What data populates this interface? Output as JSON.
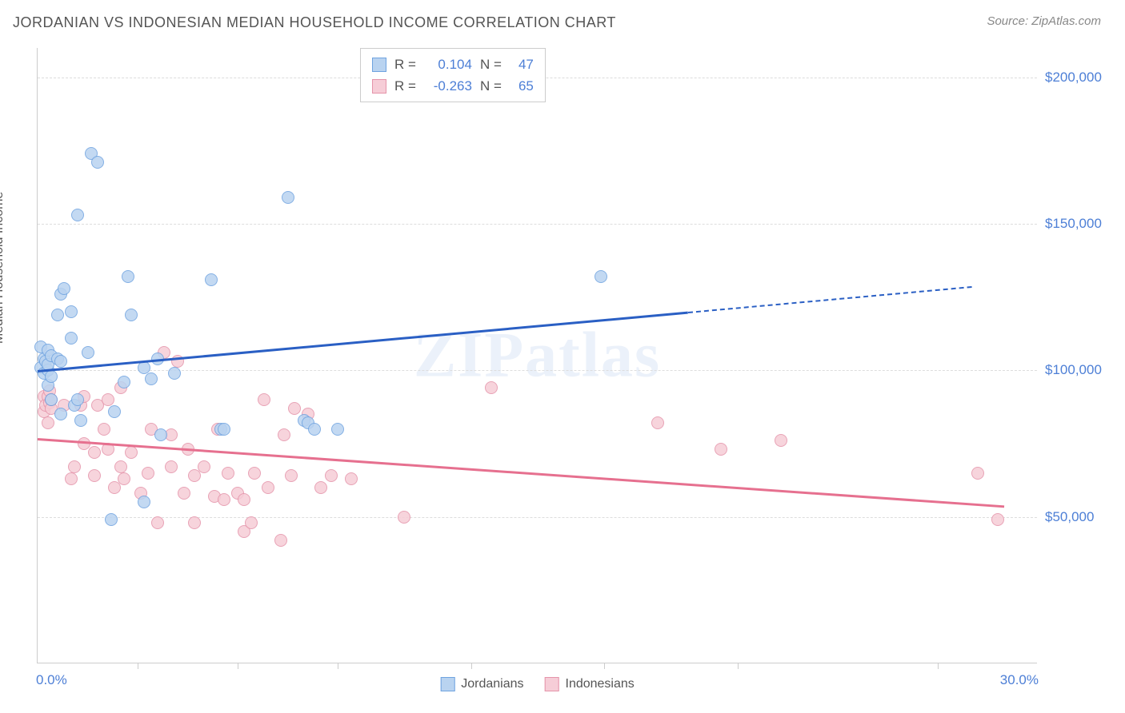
{
  "title": "JORDANIAN VS INDONESIAN MEDIAN HOUSEHOLD INCOME CORRELATION CHART",
  "source": "Source: ZipAtlas.com",
  "ylabel": "Median Household Income",
  "watermark": "ZIPatlas",
  "chart": {
    "type": "scatter",
    "xlim": [
      0.0,
      30.0
    ],
    "ylim": [
      0,
      210000
    ],
    "background_color": "#ffffff",
    "grid_color": "#dddddd",
    "axis_color": "#cccccc",
    "yticks": [
      {
        "value": 50000,
        "label": "$50,000"
      },
      {
        "value": 100000,
        "label": "$100,000"
      },
      {
        "value": 150000,
        "label": "$150,000"
      },
      {
        "value": 200000,
        "label": "$200,000"
      }
    ],
    "xtick_label_left": "0.0%",
    "xtick_label_right": "30.0%",
    "xtick_positions": [
      3,
      6,
      9,
      13,
      17,
      21,
      27
    ],
    "series": [
      {
        "name": "Jordanians",
        "fill": "#b9d3f0",
        "stroke": "#6fa3e0",
        "trend_color": "#2a5fc4",
        "R": "0.104",
        "N": "47",
        "trend": {
          "x1": 0,
          "y1": 100000,
          "x2": 19.5,
          "y2": 120000,
          "dashed_to_x": 28
        },
        "points": [
          [
            0.1,
            101000
          ],
          [
            0.1,
            108000
          ],
          [
            0.2,
            104000
          ],
          [
            0.2,
            99000
          ],
          [
            0.25,
            103000
          ],
          [
            0.3,
            100000
          ],
          [
            0.3,
            95000
          ],
          [
            0.3,
            107000
          ],
          [
            0.3,
            102000
          ],
          [
            0.4,
            105000
          ],
          [
            0.4,
            90000
          ],
          [
            0.4,
            98000
          ],
          [
            0.6,
            104000
          ],
          [
            0.6,
            119000
          ],
          [
            0.7,
            103000
          ],
          [
            0.7,
            126000
          ],
          [
            0.7,
            85000
          ],
          [
            0.8,
            128000
          ],
          [
            1.0,
            120000
          ],
          [
            1.0,
            111000
          ],
          [
            1.1,
            88000
          ],
          [
            1.2,
            90000
          ],
          [
            1.2,
            153000
          ],
          [
            1.3,
            83000
          ],
          [
            1.5,
            106000
          ],
          [
            1.6,
            174000
          ],
          [
            1.8,
            171000
          ],
          [
            2.2,
            49000
          ],
          [
            2.3,
            86000
          ],
          [
            2.6,
            96000
          ],
          [
            2.7,
            132000
          ],
          [
            2.8,
            119000
          ],
          [
            3.2,
            101000
          ],
          [
            3.2,
            55000
          ],
          [
            3.4,
            97000
          ],
          [
            3.6,
            104000
          ],
          [
            3.7,
            78000
          ],
          [
            4.1,
            99000
          ],
          [
            5.2,
            131000
          ],
          [
            5.5,
            80000
          ],
          [
            5.6,
            80000
          ],
          [
            7.5,
            159000
          ],
          [
            8.0,
            83000
          ],
          [
            8.1,
            82000
          ],
          [
            8.3,
            80000
          ],
          [
            9.0,
            80000
          ],
          [
            16.9,
            132000
          ]
        ]
      },
      {
        "name": "Indonesians",
        "fill": "#f6cdd7",
        "stroke": "#e594aa",
        "trend_color": "#e6708f",
        "R": "-0.263",
        "N": "65",
        "trend": {
          "x1": 0,
          "y1": 77000,
          "x2": 29,
          "y2": 54000
        },
        "points": [
          [
            0.2,
            91000
          ],
          [
            0.2,
            86000
          ],
          [
            0.25,
            88000
          ],
          [
            0.3,
            91000
          ],
          [
            0.3,
            82000
          ],
          [
            0.35,
            89000
          ],
          [
            0.35,
            93000
          ],
          [
            0.4,
            87000
          ],
          [
            0.4,
            90000
          ],
          [
            0.8,
            88000
          ],
          [
            1.0,
            63000
          ],
          [
            1.1,
            67000
          ],
          [
            1.3,
            88000
          ],
          [
            1.4,
            91000
          ],
          [
            1.4,
            75000
          ],
          [
            1.7,
            72000
          ],
          [
            1.7,
            64000
          ],
          [
            1.8,
            88000
          ],
          [
            2.0,
            80000
          ],
          [
            2.1,
            73000
          ],
          [
            2.1,
            90000
          ],
          [
            2.3,
            60000
          ],
          [
            2.5,
            94000
          ],
          [
            2.5,
            67000
          ],
          [
            2.6,
            63000
          ],
          [
            2.8,
            72000
          ],
          [
            3.1,
            58000
          ],
          [
            3.3,
            65000
          ],
          [
            3.4,
            80000
          ],
          [
            3.6,
            48000
          ],
          [
            3.8,
            106000
          ],
          [
            4.0,
            67000
          ],
          [
            4.0,
            78000
          ],
          [
            4.2,
            103000
          ],
          [
            4.4,
            58000
          ],
          [
            4.5,
            73000
          ],
          [
            4.7,
            64000
          ],
          [
            4.7,
            48000
          ],
          [
            5.0,
            67000
          ],
          [
            5.3,
            57000
          ],
          [
            5.4,
            80000
          ],
          [
            5.6,
            56000
          ],
          [
            5.7,
            65000
          ],
          [
            6.0,
            58000
          ],
          [
            6.2,
            45000
          ],
          [
            6.2,
            56000
          ],
          [
            6.4,
            48000
          ],
          [
            6.5,
            65000
          ],
          [
            6.8,
            90000
          ],
          [
            6.9,
            60000
          ],
          [
            7.3,
            42000
          ],
          [
            7.4,
            78000
          ],
          [
            7.6,
            64000
          ],
          [
            7.7,
            87000
          ],
          [
            8.1,
            85000
          ],
          [
            8.5,
            60000
          ],
          [
            8.8,
            64000
          ],
          [
            9.4,
            63000
          ],
          [
            11.0,
            50000
          ],
          [
            13.6,
            94000
          ],
          [
            18.6,
            82000
          ],
          [
            20.5,
            73000
          ],
          [
            22.3,
            76000
          ],
          [
            28.2,
            65000
          ],
          [
            28.8,
            49000
          ]
        ]
      }
    ]
  },
  "legend": {
    "items": [
      {
        "label": "Jordanians",
        "fill": "#b9d3f0",
        "stroke": "#6fa3e0"
      },
      {
        "label": "Indonesians",
        "fill": "#f6cdd7",
        "stroke": "#e594aa"
      }
    ]
  }
}
